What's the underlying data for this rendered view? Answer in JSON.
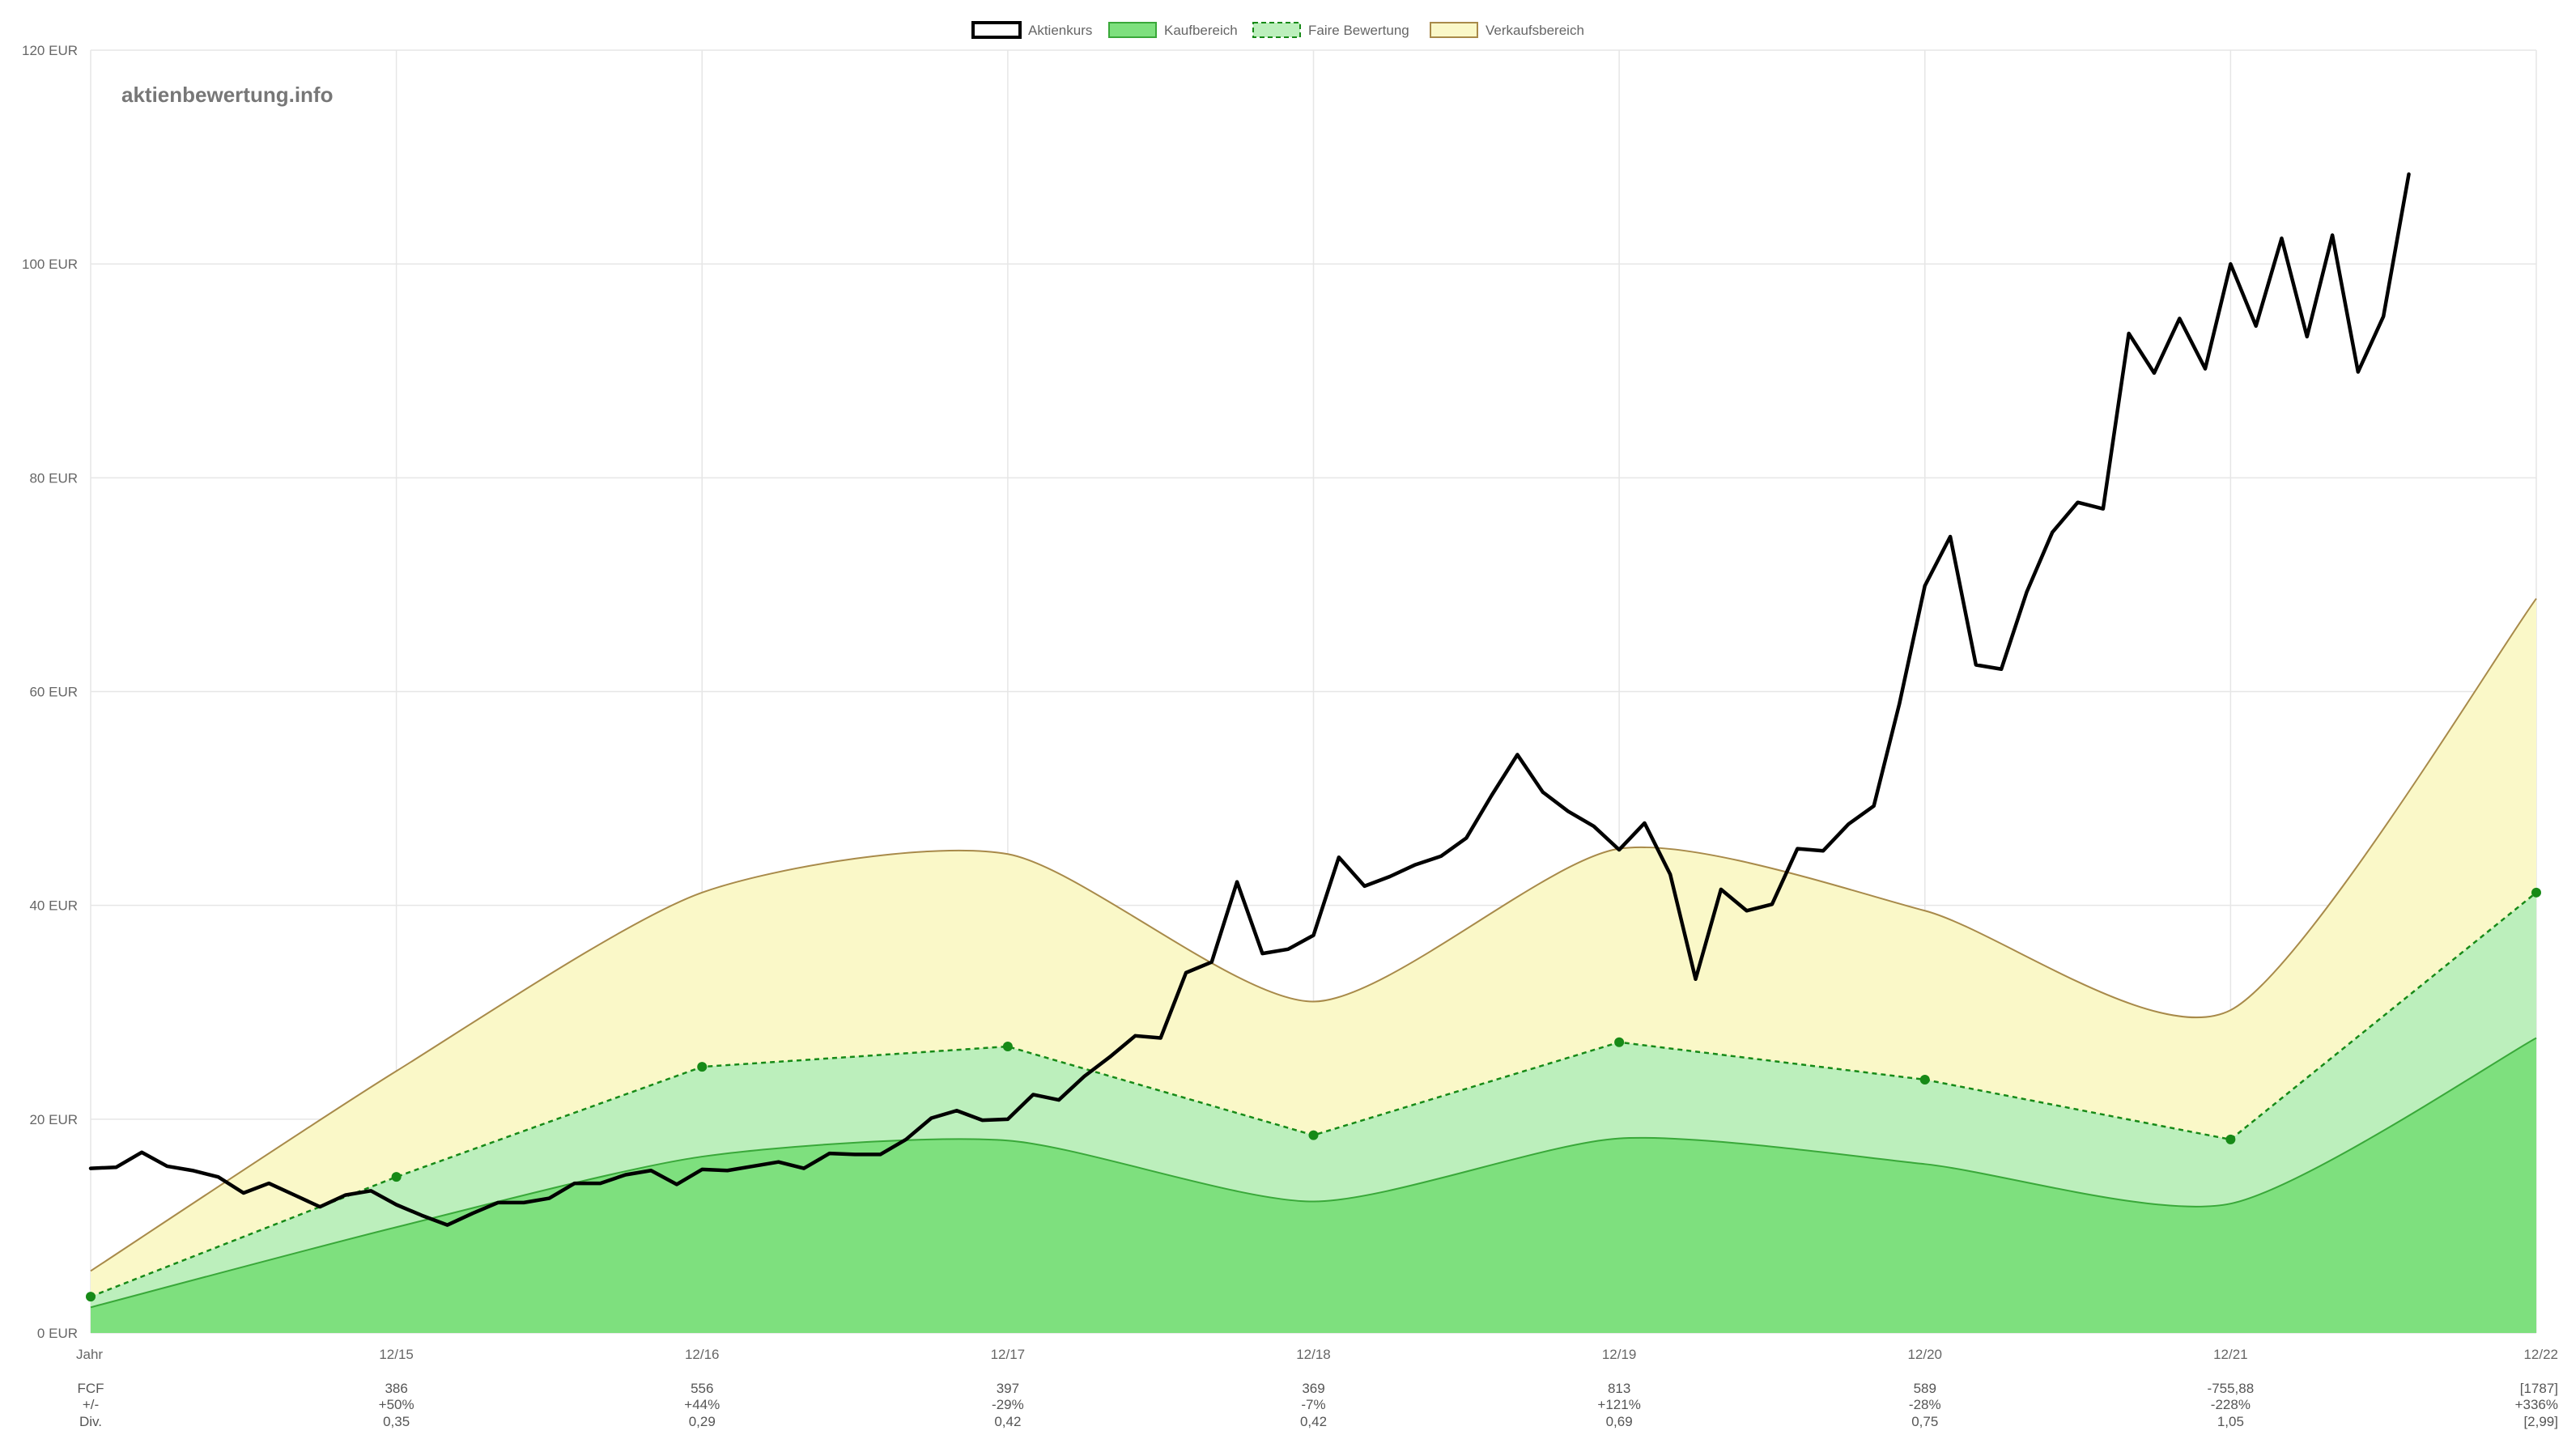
{
  "watermark": "aktienbewertung.info",
  "legend": [
    {
      "label": "Aktienkurs",
      "fill": "#ffffff",
      "stroke": "#000000",
      "dashed": false
    },
    {
      "label": "Kaufbereich",
      "fill": "#7ee07e",
      "stroke": "#39a839",
      "dashed": false
    },
    {
      "label": "Faire Bewertung",
      "fill": "#bcefbc",
      "stroke": "#178a17",
      "dashed": true
    },
    {
      "label": "Verkaufsbereich",
      "fill": "#faf8c8",
      "stroke": "#a88a4a",
      "dashed": false
    }
  ],
  "colors": {
    "price": "#000000",
    "buy_fill": "#7ee07e",
    "buy_line": "#39a839",
    "fair_fill": "#bcefbc",
    "fair_line": "#178a17",
    "sell_fill": "#faf8c8",
    "sell_line": "#a88a4a",
    "grid": "#e6e6e6",
    "axis_text": "#666666"
  },
  "chart_data": {
    "type": "line",
    "x_labels": [
      "Jahr",
      "12/15",
      "12/16",
      "12/17",
      "12/18",
      "12/19",
      "12/20",
      "12/21",
      "12/22"
    ],
    "y_ticks": [
      "0 EUR",
      "20 EUR",
      "40 EUR",
      "60 EUR",
      "80 EUR",
      "100 EUR",
      "120 EUR"
    ],
    "ylim": [
      0,
      120
    ],
    "grid": true,
    "legend_position": "top",
    "series": [
      {
        "name": "Verkaufsbereich",
        "kind": "band-upper",
        "values": [
          5.8,
          24.5,
          41.2,
          44.8,
          31.0,
          45.3,
          39.5,
          30.2,
          68.7
        ]
      },
      {
        "name": "Faire Bewertung",
        "kind": "band-middle",
        "values": [
          3.4,
          14.6,
          24.9,
          26.8,
          18.5,
          27.2,
          23.7,
          18.1,
          41.2
        ]
      },
      {
        "name": "Kaufbereich",
        "kind": "band-lower",
        "values": [
          2.4,
          9.9,
          16.5,
          18.0,
          12.3,
          18.2,
          15.8,
          12.1,
          27.6
        ]
      },
      {
        "name": "Aktienkurs",
        "kind": "line",
        "x": [
          0.0,
          0.083,
          0.167,
          0.25,
          0.333,
          0.417,
          0.5,
          0.583,
          0.667,
          0.75,
          0.833,
          0.917,
          1.0,
          1.083,
          1.167,
          1.25,
          1.333,
          1.417,
          1.5,
          1.583,
          1.667,
          1.75,
          1.833,
          1.917,
          2.0,
          2.083,
          2.167,
          2.25,
          2.333,
          2.417,
          2.5,
          2.583,
          2.667,
          2.75,
          2.833,
          2.917,
          3.0,
          3.083,
          3.167,
          3.25,
          3.333,
          3.417,
          3.5,
          3.583,
          3.667,
          3.75,
          3.833,
          3.917,
          4.0,
          4.083,
          4.167,
          4.25,
          4.333,
          4.417,
          4.5,
          4.583,
          4.667,
          4.75,
          4.833,
          4.917,
          5.0,
          5.083,
          5.167,
          5.25,
          5.333,
          5.417,
          5.5,
          5.583,
          5.667,
          5.75,
          5.833,
          5.917,
          6.0,
          6.083,
          6.167,
          6.25,
          6.333,
          6.417,
          6.5,
          6.583,
          6.667,
          6.75,
          6.833,
          6.917,
          7.0,
          7.083,
          7.167,
          7.25,
          7.333,
          7.417,
          7.5,
          7.583
        ],
        "values": [
          15.4,
          15.5,
          16.9,
          15.6,
          15.2,
          14.6,
          13.1,
          14.0,
          12.9,
          11.8,
          12.9,
          13.3,
          12.0,
          11.0,
          10.1,
          11.2,
          12.2,
          12.2,
          12.6,
          14.0,
          14.0,
          14.8,
          15.2,
          13.9,
          15.3,
          15.2,
          15.6,
          16.0,
          15.4,
          16.8,
          16.7,
          16.7,
          18.1,
          20.1,
          20.8,
          19.9,
          20.0,
          22.3,
          21.8,
          24.0,
          25.8,
          27.8,
          27.6,
          33.7,
          34.7,
          42.2,
          35.5,
          35.9,
          37.2,
          44.5,
          41.8,
          42.7,
          43.8,
          44.6,
          46.3,
          50.3,
          54.1,
          50.6,
          48.8,
          47.4,
          45.2,
          47.7,
          42.9,
          33.1,
          41.5,
          39.5,
          40.1,
          45.3,
          45.1,
          47.6,
          49.3,
          58.9,
          69.9,
          74.5,
          62.5,
          62.1,
          69.3,
          74.9,
          77.7,
          77.1,
          93.5,
          89.8,
          94.9,
          90.2,
          100.0,
          94.2,
          102.4,
          93.2,
          102.7,
          89.9,
          95.1,
          108.4
        ]
      }
    ],
    "markers_on": "Faire Bewertung",
    "table_rows": [
      {
        "label": "FCF",
        "values": [
          "386",
          "556",
          "397",
          "369",
          "813",
          "589",
          "-755,88",
          "[1787]"
        ]
      },
      {
        "label": "+/-",
        "values": [
          "+50%",
          "+44%",
          "-29%",
          "-7%",
          "+121%",
          "-28%",
          "-228%",
          "+336%"
        ]
      },
      {
        "label": "Div.",
        "values": [
          "0,35",
          "0,29",
          "0,42",
          "0,42",
          "0,69",
          "0,75",
          "1,05",
          "[2,99]"
        ]
      }
    ]
  }
}
